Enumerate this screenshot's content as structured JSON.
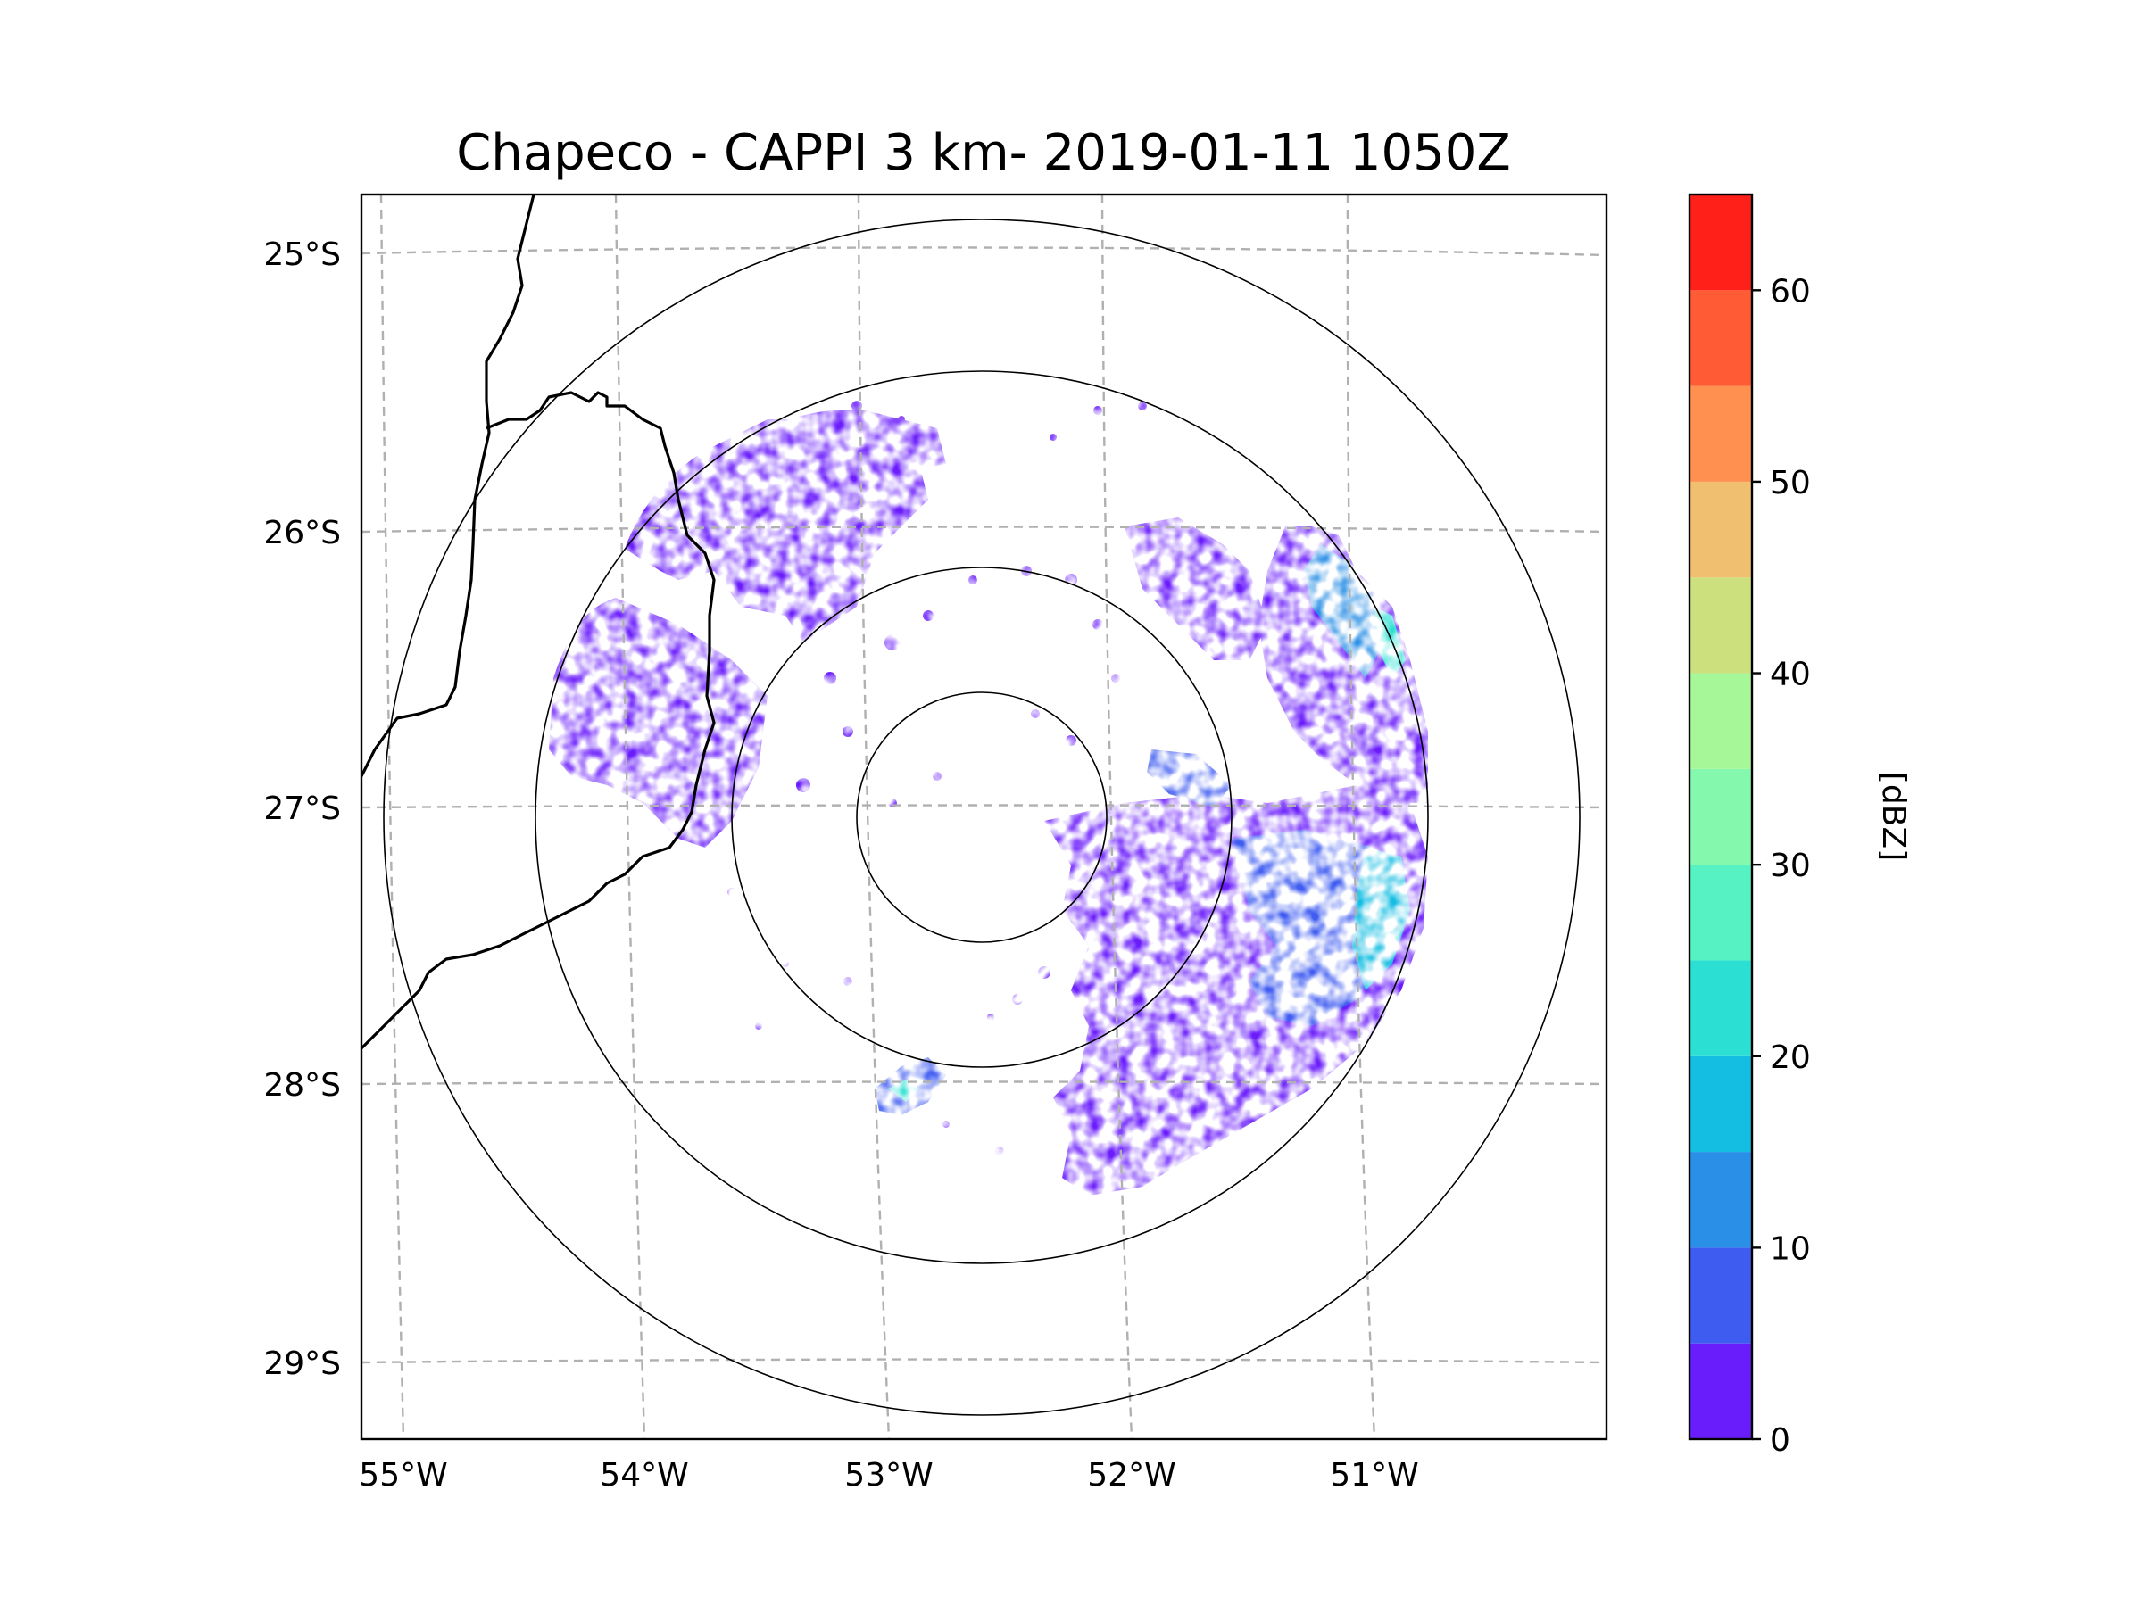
{
  "title": "Chapeco - CAPPI 3 km- 2019-01-11 1050Z",
  "map": {
    "lon_ticks": [
      "55°W",
      "54°W",
      "53°W",
      "52°W",
      "51°W"
    ],
    "lat_ticks": [
      "25°S",
      "26°S",
      "27°S",
      "28°S",
      "29°S"
    ],
    "range_ring_count": 4
  },
  "colorbar": {
    "label": "[dBZ]",
    "ticks": [
      "0",
      "10",
      "20",
      "30",
      "40",
      "50",
      "60"
    ],
    "levels_dbz": [
      0,
      5,
      10,
      15,
      20,
      25,
      30,
      35,
      40,
      45,
      50,
      55,
      60,
      65
    ],
    "colors": [
      "#6a1dfb",
      "#3f5cf1",
      "#2a8fe6",
      "#14bde2",
      "#2be0d3",
      "#56f2c4",
      "#84f9ad",
      "#a6f798",
      "#cde07e",
      "#f0c070",
      "#ff9050",
      "#ff5b34",
      "#ff2119"
    ]
  },
  "echo_regions": [
    {
      "name": "north-west band",
      "dbz": "0-10"
    },
    {
      "name": "west band",
      "dbz": "0-10"
    },
    {
      "name": "south-east cluster",
      "dbz": "0-25"
    },
    {
      "name": "east rim",
      "dbz": "0-30"
    },
    {
      "name": "south-west cell",
      "dbz": "0-25"
    }
  ]
}
